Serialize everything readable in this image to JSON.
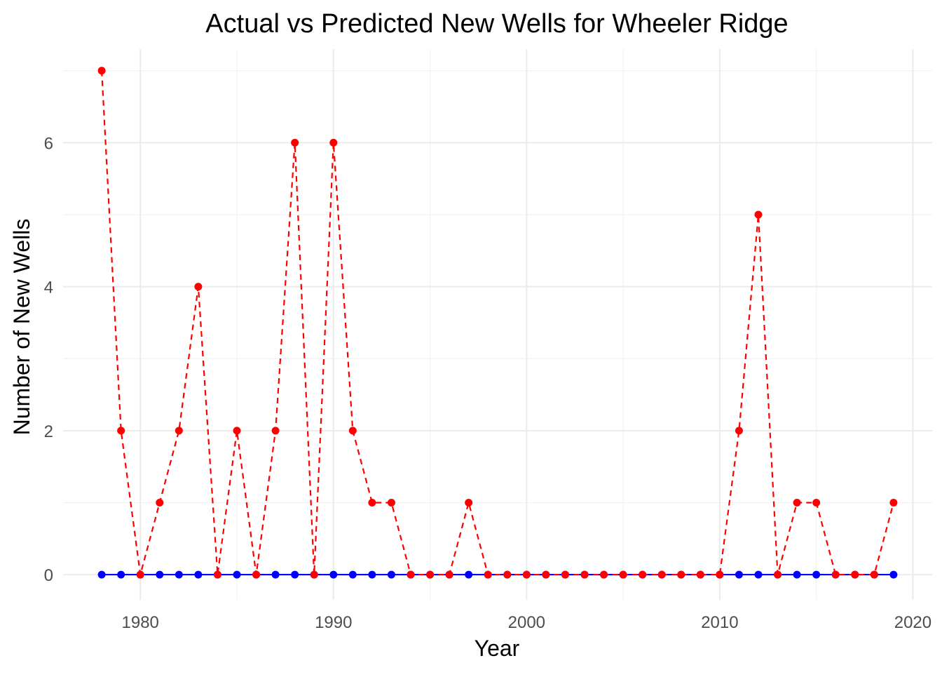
{
  "chart_data": {
    "type": "line",
    "title": "Actual vs Predicted New Wells for Wheeler Ridge",
    "xlabel": "Year",
    "ylabel": "Number of New Wells",
    "xlim": [
      1976,
      2021
    ],
    "ylim": [
      -0.35,
      7.3
    ],
    "x_ticks": [
      1980,
      1990,
      2000,
      2010,
      2020
    ],
    "x_tick_labels": [
      "1980",
      "1990",
      "2000",
      "2010",
      "2020"
    ],
    "y_ticks": [
      0,
      2,
      4,
      6
    ],
    "y_tick_labels": [
      "0",
      "2",
      "4",
      "6"
    ],
    "grid": true,
    "legend": "none",
    "x": [
      1978,
      1979,
      1980,
      1981,
      1982,
      1983,
      1984,
      1985,
      1986,
      1987,
      1988,
      1989,
      1990,
      1991,
      1992,
      1993,
      1994,
      1995,
      1996,
      1997,
      1998,
      1999,
      2000,
      2001,
      2002,
      2003,
      2004,
      2005,
      2006,
      2007,
      2008,
      2009,
      2010,
      2011,
      2012,
      2013,
      2014,
      2015,
      2016,
      2017,
      2018,
      2019
    ],
    "series": [
      {
        "color": "#0000ff",
        "line_style": "solid",
        "values": [
          0,
          0,
          0,
          0,
          0,
          0,
          0,
          0,
          0,
          0,
          0,
          0,
          0,
          0,
          0,
          0,
          0,
          0,
          0,
          0,
          0,
          0,
          0,
          0,
          0,
          0,
          0,
          0,
          0,
          0,
          0,
          0,
          0,
          0,
          0,
          0,
          0,
          0,
          0,
          0,
          0,
          0
        ]
      },
      {
        "color": "#ff0000",
        "line_style": "dashed",
        "values": [
          7,
          2,
          0,
          1,
          2,
          4,
          0,
          2,
          0,
          2,
          6,
          0,
          6,
          2,
          1,
          1,
          0,
          0,
          0,
          1,
          0,
          0,
          0,
          0,
          0,
          0,
          0,
          0,
          0,
          0,
          0,
          0,
          0,
          2,
          5,
          0,
          1,
          1,
          0,
          0,
          0,
          1
        ]
      }
    ]
  }
}
